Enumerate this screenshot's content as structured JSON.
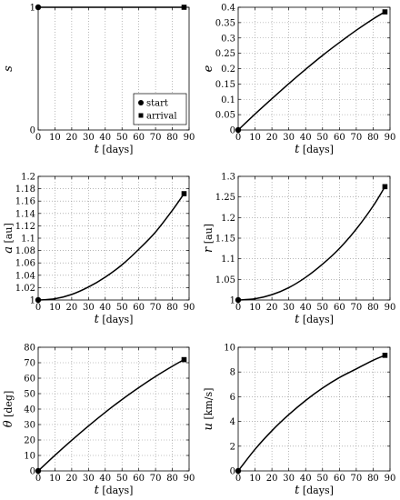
{
  "chart_data": [
    {
      "type": "line",
      "xlabel_symbol": "t",
      "xlabel_unit": "[days]",
      "ylabel_symbol": "s",
      "ylabel_unit": "",
      "xlim": [
        0,
        90
      ],
      "ylim": [
        0,
        1
      ],
      "xticks": [
        0,
        10,
        20,
        30,
        40,
        50,
        60,
        70,
        80,
        90
      ],
      "yticks": [
        0,
        1
      ],
      "ytick_labels": [
        "0",
        "1"
      ],
      "series": [
        {
          "x": [
            0,
            87
          ],
          "y": [
            1,
            1
          ]
        }
      ],
      "start": {
        "x": 0,
        "y": 1
      },
      "arrival": {
        "x": 87,
        "y": 1
      },
      "legend": {
        "position": "bottom-right",
        "entries": [
          "start",
          "arrival"
        ]
      },
      "grid": true
    },
    {
      "type": "line",
      "xlabel_symbol": "t",
      "xlabel_unit": "[days]",
      "ylabel_symbol": "e",
      "ylabel_unit": "",
      "xlim": [
        0,
        90
      ],
      "ylim": [
        0,
        0.4
      ],
      "xticks": [
        0,
        10,
        20,
        30,
        40,
        50,
        60,
        70,
        80,
        90
      ],
      "yticks": [
        0,
        0.05,
        0.1,
        0.15,
        0.2,
        0.25,
        0.3,
        0.35,
        0.4
      ],
      "ytick_labels": [
        "0",
        "0.05",
        "0.1",
        "0.15",
        "0.2",
        "0.25",
        "0.3",
        "0.35",
        "0.4"
      ],
      "series": [
        {
          "x": [
            0,
            10,
            20,
            30,
            40,
            50,
            60,
            70,
            80,
            87
          ],
          "y": [
            0,
            0.052,
            0.102,
            0.151,
            0.198,
            0.243,
            0.285,
            0.325,
            0.362,
            0.385
          ]
        }
      ],
      "start": {
        "x": 0,
        "y": 0
      },
      "arrival": {
        "x": 87,
        "y": 0.385
      },
      "grid": true
    },
    {
      "type": "line",
      "xlabel_symbol": "t",
      "xlabel_unit": "[days]",
      "ylabel_symbol": "a",
      "ylabel_unit": "[au]",
      "xlim": [
        0,
        90
      ],
      "ylim": [
        1,
        1.2
      ],
      "xticks": [
        0,
        10,
        20,
        30,
        40,
        50,
        60,
        70,
        80,
        90
      ],
      "yticks": [
        1,
        1.02,
        1.04,
        1.06,
        1.08,
        1.1,
        1.12,
        1.14,
        1.16,
        1.18,
        1.2
      ],
      "ytick_labels": [
        "1",
        "1.02",
        "1.04",
        "1.06",
        "1.08",
        "1.1",
        "1.12",
        "1.14",
        "1.16",
        "1.18",
        "1.2"
      ],
      "series": [
        {
          "x": [
            0,
            10,
            20,
            30,
            40,
            50,
            60,
            70,
            80,
            87
          ],
          "y": [
            1,
            1.002,
            1.009,
            1.021,
            1.037,
            1.057,
            1.082,
            1.11,
            1.145,
            1.172
          ]
        }
      ],
      "start": {
        "x": 0,
        "y": 1
      },
      "arrival": {
        "x": 87,
        "y": 1.172
      },
      "grid": true
    },
    {
      "type": "line",
      "xlabel_symbol": "t",
      "xlabel_unit": "[days]",
      "ylabel_symbol": "r",
      "ylabel_unit": "[au]",
      "xlim": [
        0,
        90
      ],
      "ylim": [
        1,
        1.3
      ],
      "xticks": [
        0,
        10,
        20,
        30,
        40,
        50,
        60,
        70,
        80,
        90
      ],
      "yticks": [
        1,
        1.05,
        1.1,
        1.15,
        1.2,
        1.25,
        1.3
      ],
      "ytick_labels": [
        "1",
        "1.05",
        "1.1",
        "1.15",
        "1.2",
        "1.25",
        "1.3"
      ],
      "series": [
        {
          "x": [
            0,
            10,
            20,
            30,
            40,
            50,
            60,
            70,
            80,
            87
          ],
          "y": [
            1,
            1.003,
            1.013,
            1.03,
            1.055,
            1.087,
            1.125,
            1.172,
            1.228,
            1.275
          ]
        }
      ],
      "start": {
        "x": 0,
        "y": 1
      },
      "arrival": {
        "x": 87,
        "y": 1.275
      },
      "grid": true
    },
    {
      "type": "line",
      "xlabel_symbol": "t",
      "xlabel_unit": "[days]",
      "ylabel_symbol": "θ",
      "ylabel_unit": "[deg]",
      "xlim": [
        0,
        90
      ],
      "ylim": [
        0,
        80
      ],
      "xticks": [
        0,
        10,
        20,
        30,
        40,
        50,
        60,
        70,
        80,
        90
      ],
      "yticks": [
        0,
        10,
        20,
        30,
        40,
        50,
        60,
        70,
        80
      ],
      "ytick_labels": [
        "0",
        "10",
        "20",
        "30",
        "40",
        "50",
        "60",
        "70",
        "80"
      ],
      "series": [
        {
          "x": [
            0,
            10,
            20,
            30,
            40,
            50,
            60,
            70,
            80,
            87
          ],
          "y": [
            0,
            10.1,
            19.8,
            29.1,
            37.9,
            46.2,
            53.9,
            61.1,
            67.7,
            72
          ]
        }
      ],
      "start": {
        "x": 0,
        "y": 0
      },
      "arrival": {
        "x": 87,
        "y": 72
      },
      "grid": true
    },
    {
      "type": "line",
      "xlabel_symbol": "t",
      "xlabel_unit": "[days]",
      "ylabel_symbol": "u",
      "ylabel_unit": "[km/s]",
      "xlim": [
        0,
        90
      ],
      "ylim": [
        0,
        10
      ],
      "xticks": [
        0,
        10,
        20,
        30,
        40,
        50,
        60,
        70,
        80,
        90
      ],
      "yticks": [
        0,
        2,
        4,
        6,
        8,
        10
      ],
      "ytick_labels": [
        "0",
        "2",
        "4",
        "6",
        "8",
        "10"
      ],
      "series": [
        {
          "x": [
            0,
            10,
            20,
            30,
            40,
            50,
            60,
            70,
            80,
            87
          ],
          "y": [
            0,
            1.75,
            3.25,
            4.55,
            5.7,
            6.7,
            7.55,
            8.25,
            8.95,
            9.35
          ]
        }
      ],
      "start": {
        "x": 0,
        "y": 0
      },
      "arrival": {
        "x": 87,
        "y": 9.35
      },
      "grid": true
    }
  ]
}
